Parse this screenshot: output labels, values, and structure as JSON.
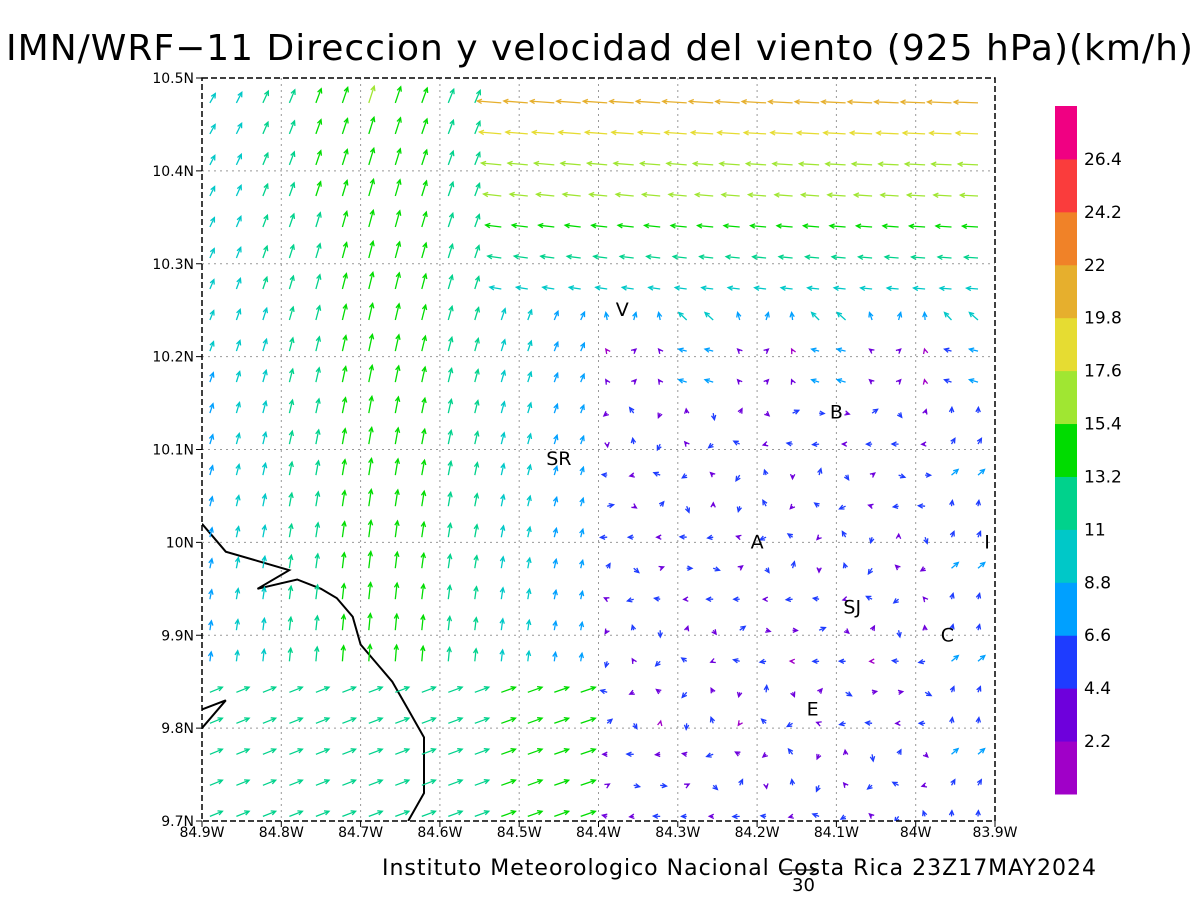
{
  "title": "IMN/WRF−11 Direccion y velocidad del viento (925 hPa)(km/h)",
  "footer": "Instituto Meteorologico Nacional Costa Rica 23Z17MAY2024",
  "reference_vector": {
    "label": "30",
    "speed": 30
  },
  "map": {
    "lon_range": [
      -84.9,
      -83.9
    ],
    "lat_range": [
      9.7,
      10.5
    ],
    "x_ticks": [
      "84.9W",
      "84.8W",
      "84.7W",
      "84.6W",
      "84.5W",
      "84.4W",
      "84.3W",
      "84.2W",
      "84.1W",
      "84W",
      "83.9W"
    ],
    "y_ticks": [
      "9.7N",
      "9.8N",
      "9.9N",
      "10N",
      "10.1N",
      "10.2N",
      "10.3N",
      "10.4N",
      "10.5N"
    ],
    "grid": true,
    "cities": [
      {
        "label": "V",
        "lon": -84.37,
        "lat": 10.25
      },
      {
        "label": "B",
        "lon": -84.1,
        "lat": 10.14
      },
      {
        "label": "SR",
        "lon": -84.45,
        "lat": 10.09
      },
      {
        "label": "A",
        "lon": -84.2,
        "lat": 10.0
      },
      {
        "label": "I",
        "lon": -83.91,
        "lat": 10.0
      },
      {
        "label": "SJ",
        "lon": -84.08,
        "lat": 9.93
      },
      {
        "label": "C",
        "lon": -83.96,
        "lat": 9.9
      },
      {
        "label": "E",
        "lon": -84.13,
        "lat": 9.82
      }
    ]
  },
  "colorbar": {
    "colors": [
      "#a000c8",
      "#6e00dc",
      "#1e3cff",
      "#00a0ff",
      "#00c8c8",
      "#00d28c",
      "#00dc00",
      "#a0e632",
      "#e6dc32",
      "#e6af2d",
      "#f08228",
      "#fa3c3c",
      "#f00082"
    ],
    "labels": [
      "2.2",
      "4.4",
      "6.6",
      "8.8",
      "11",
      "13.2",
      "15.4",
      "17.6",
      "19.8",
      "22",
      "24.2",
      "26.4"
    ]
  },
  "coastline": [
    [
      -84.9,
      10.02
    ],
    [
      -84.87,
      9.99
    ],
    [
      -84.83,
      9.98
    ],
    [
      -84.79,
      9.97
    ],
    [
      -84.83,
      9.95
    ],
    [
      -84.78,
      9.96
    ],
    [
      -84.75,
      9.95
    ],
    [
      -84.73,
      9.94
    ],
    [
      -84.71,
      9.92
    ],
    [
      -84.7,
      9.89
    ],
    [
      -84.66,
      9.85
    ],
    [
      -84.64,
      9.82
    ],
    [
      -84.62,
      9.79
    ],
    [
      -84.62,
      9.73
    ],
    [
      -84.64,
      9.7
    ]
  ],
  "coastline2": [
    [
      -84.9,
      9.82
    ],
    [
      -84.87,
      9.83
    ],
    [
      -84.9,
      9.8
    ]
  ]
}
